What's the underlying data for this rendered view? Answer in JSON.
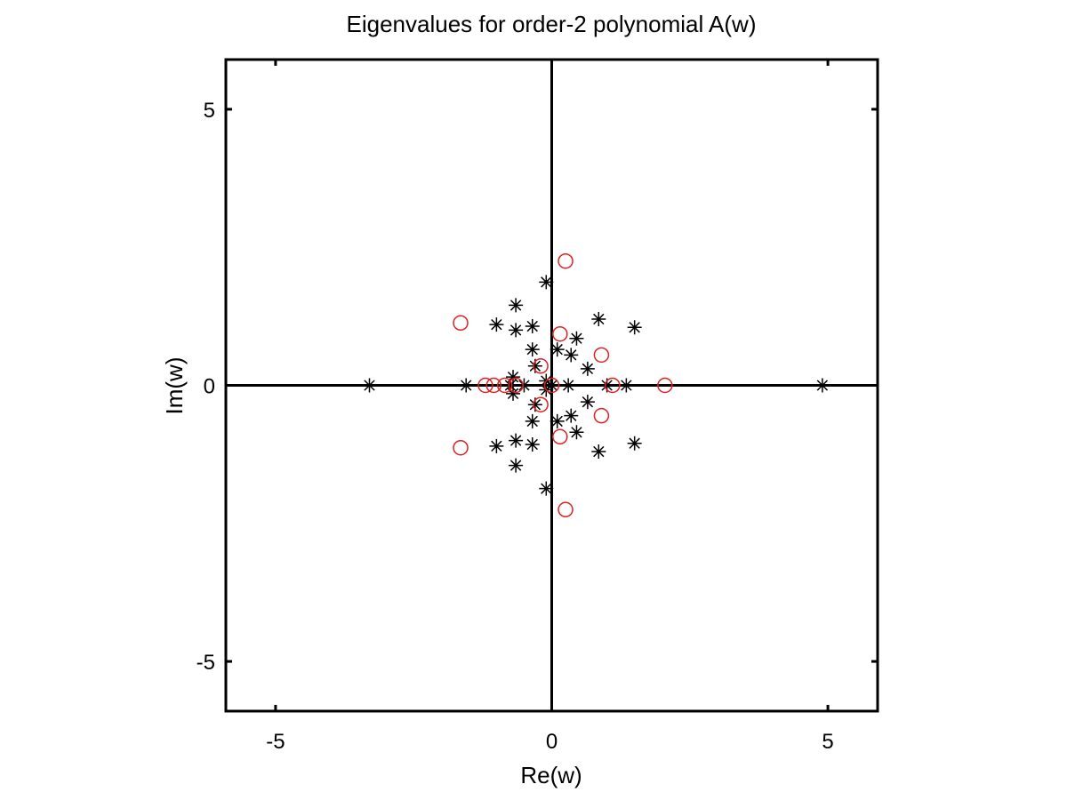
{
  "chart_data": {
    "type": "scatter",
    "title": "Eigenvalues for order-2 polynomial A(w)",
    "xlabel": "Re(w)",
    "ylabel": "Im(w)",
    "xlim": [
      -5.9,
      5.9
    ],
    "ylim": [
      -5.9,
      5.9
    ],
    "xticks": [
      -5,
      0,
      5
    ],
    "yticks": [
      -5,
      0,
      5
    ],
    "xtick_labels": [
      "-5",
      "0",
      "5"
    ],
    "ytick_labels": [
      "-5",
      "0",
      "5"
    ],
    "grid": false,
    "zero_axes": true,
    "series": [
      {
        "marker": "asterisk",
        "color": "#000000",
        "points": [
          [
            -3.3,
            0
          ],
          [
            -1.55,
            0
          ],
          [
            -0.75,
            0
          ],
          [
            -0.5,
            0
          ],
          [
            0.0,
            0
          ],
          [
            0.3,
            0
          ],
          [
            1.0,
            0
          ],
          [
            1.35,
            0
          ],
          [
            4.9,
            0
          ],
          [
            -0.1,
            1.87
          ],
          [
            -0.1,
            -1.87
          ],
          [
            -0.65,
            1.45
          ],
          [
            -0.65,
            -1.45
          ],
          [
            -1.0,
            1.1
          ],
          [
            -1.0,
            -1.1
          ],
          [
            -0.65,
            1.0
          ],
          [
            -0.65,
            -1.0
          ],
          [
            -0.35,
            1.07
          ],
          [
            -0.35,
            -1.07
          ],
          [
            0.85,
            1.2
          ],
          [
            0.85,
            -1.2
          ],
          [
            1.5,
            1.05
          ],
          [
            1.5,
            -1.05
          ],
          [
            0.45,
            0.85
          ],
          [
            0.45,
            -0.85
          ],
          [
            -0.35,
            0.65
          ],
          [
            -0.35,
            -0.65
          ],
          [
            0.1,
            0.65
          ],
          [
            0.1,
            -0.65
          ],
          [
            0.35,
            0.55
          ],
          [
            0.35,
            -0.55
          ],
          [
            0.65,
            0.3
          ],
          [
            0.65,
            -0.3
          ],
          [
            -0.3,
            0.35
          ],
          [
            -0.3,
            -0.35
          ],
          [
            -0.7,
            0.15
          ],
          [
            -0.7,
            -0.15
          ],
          [
            -0.1,
            0.08
          ],
          [
            -0.1,
            -0.08
          ]
        ]
      },
      {
        "marker": "circle",
        "color": "#e02020",
        "points": [
          [
            -1.65,
            1.13
          ],
          [
            -1.65,
            -1.13
          ],
          [
            0.25,
            2.25
          ],
          [
            0.25,
            -2.25
          ],
          [
            0.15,
            0.93
          ],
          [
            0.15,
            -0.93
          ],
          [
            0.9,
            0.55
          ],
          [
            0.9,
            -0.55
          ],
          [
            -0.2,
            0.35
          ],
          [
            -0.2,
            -0.35
          ],
          [
            -1.2,
            0
          ],
          [
            -1.05,
            0
          ],
          [
            -0.85,
            0
          ],
          [
            -0.65,
            0
          ],
          [
            0.0,
            0
          ],
          [
            1.1,
            0
          ],
          [
            2.05,
            0
          ]
        ]
      }
    ]
  }
}
